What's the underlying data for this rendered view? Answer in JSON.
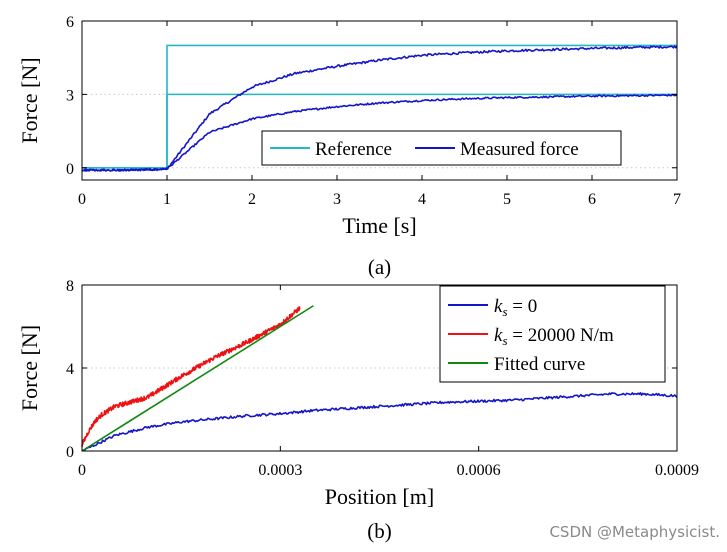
{
  "chart_data": [
    {
      "type": "line",
      "title": "",
      "caption": "(a)",
      "xlabel": "Time [s]",
      "ylabel": "Force [N]",
      "xlim": [
        0,
        7
      ],
      "ylim": [
        -0.5,
        6
      ],
      "xticks": [
        0,
        1,
        2,
        3,
        4,
        5,
        6,
        7
      ],
      "xtick_labels": [
        "0",
        "1",
        "2",
        "3",
        "4",
        "5",
        "6",
        "7"
      ],
      "yticks": [
        0,
        3,
        6
      ],
      "ytick_labels": [
        "0",
        "3",
        "6"
      ],
      "grid": "horizontal-dotted",
      "legend": {
        "placement": "lower-right",
        "orientation": "horizontal",
        "entries": [
          "Reference",
          "Measured force"
        ]
      },
      "series": [
        {
          "name": "Reference",
          "color": "#22b8c8",
          "x": [
            0,
            1,
            1,
            7
          ],
          "y": [
            0,
            0,
            5,
            5
          ]
        },
        {
          "name": "Reference",
          "color": "#22b8c8",
          "x": [
            0,
            1,
            1,
            7
          ],
          "y": [
            0,
            0,
            3,
            3
          ]
        },
        {
          "name": "Measured force",
          "color": "#1515c8",
          "x": [
            0,
            0.5,
            1.0,
            1.5,
            2.0,
            2.5,
            3.0,
            3.5,
            4.0,
            4.5,
            5.0,
            5.5,
            6.0,
            6.5,
            7.0
          ],
          "y": [
            -0.1,
            -0.1,
            -0.05,
            2.2,
            3.3,
            3.85,
            4.15,
            4.4,
            4.6,
            4.7,
            4.78,
            4.83,
            4.88,
            4.92,
            4.95
          ]
        },
        {
          "name": "Measured force",
          "color": "#1515c8",
          "x": [
            0,
            0.5,
            1.0,
            1.5,
            2.0,
            2.5,
            3.0,
            3.5,
            4.0,
            4.5,
            5.0,
            5.5,
            6.0,
            6.5,
            7.0
          ],
          "y": [
            -0.1,
            -0.1,
            -0.05,
            1.45,
            2.0,
            2.3,
            2.5,
            2.65,
            2.75,
            2.82,
            2.87,
            2.9,
            2.93,
            2.95,
            2.97
          ]
        }
      ]
    },
    {
      "type": "line",
      "title": "",
      "caption": "(b)",
      "xlabel": "Position [m]",
      "ylabel": "Force [N]",
      "xlim": [
        0,
        0.0009
      ],
      "ylim": [
        0,
        8
      ],
      "xticks": [
        0,
        0.0003,
        0.0006,
        0.0009
      ],
      "xtick_labels": [
        "0",
        "0.0003",
        "0.0006",
        "0.0009"
      ],
      "yticks": [
        0,
        4,
        8
      ],
      "ytick_labels": [
        "0",
        "4",
        "8"
      ],
      "grid": "horizontal-dotted",
      "legend": {
        "placement": "top-right",
        "orientation": "vertical",
        "entries": [
          "k_s = 0",
          "k_s = 20000 N/m",
          "Fitted curve"
        ]
      },
      "series": [
        {
          "name": "k_s = 0",
          "label_math": {
            "var": "k",
            "sub": "s",
            "rest": " = 0"
          },
          "color": "#1515c8",
          "x": [
            0,
            2e-05,
            5e-05,
            0.0001,
            0.00015,
            0.0002,
            0.00025,
            0.0003,
            0.00035,
            0.0004,
            0.00045,
            0.0005,
            0.00055,
            0.0006,
            0.00065,
            0.0007,
            0.00075,
            0.0008,
            0.00085,
            0.0009
          ],
          "y": [
            0,
            0.3,
            0.75,
            1.15,
            1.4,
            1.55,
            1.7,
            1.8,
            1.95,
            2.05,
            2.15,
            2.25,
            2.35,
            2.4,
            2.45,
            2.55,
            2.65,
            2.75,
            2.75,
            2.65
          ]
        },
        {
          "name": "k_s = 20000 N/m",
          "label_math": {
            "var": "k",
            "sub": "s",
            "rest": " = 20000 N/m"
          },
          "color": "#ee1111",
          "x": [
            0,
            1e-05,
            2e-05,
            3e-05,
            5e-05,
            0.0001,
            0.00015,
            0.0002,
            0.00025,
            0.0003,
            0.00033
          ],
          "y": [
            0.3,
            0.95,
            1.45,
            1.75,
            2.15,
            2.6,
            3.6,
            4.5,
            5.25,
            6.1,
            6.9
          ]
        },
        {
          "name": "Fitted curve",
          "color": "#118811",
          "x": [
            0,
            0.00035
          ],
          "y": [
            0,
            7
          ]
        }
      ]
    }
  ],
  "watermark": "CSDN @Metaphysicist."
}
